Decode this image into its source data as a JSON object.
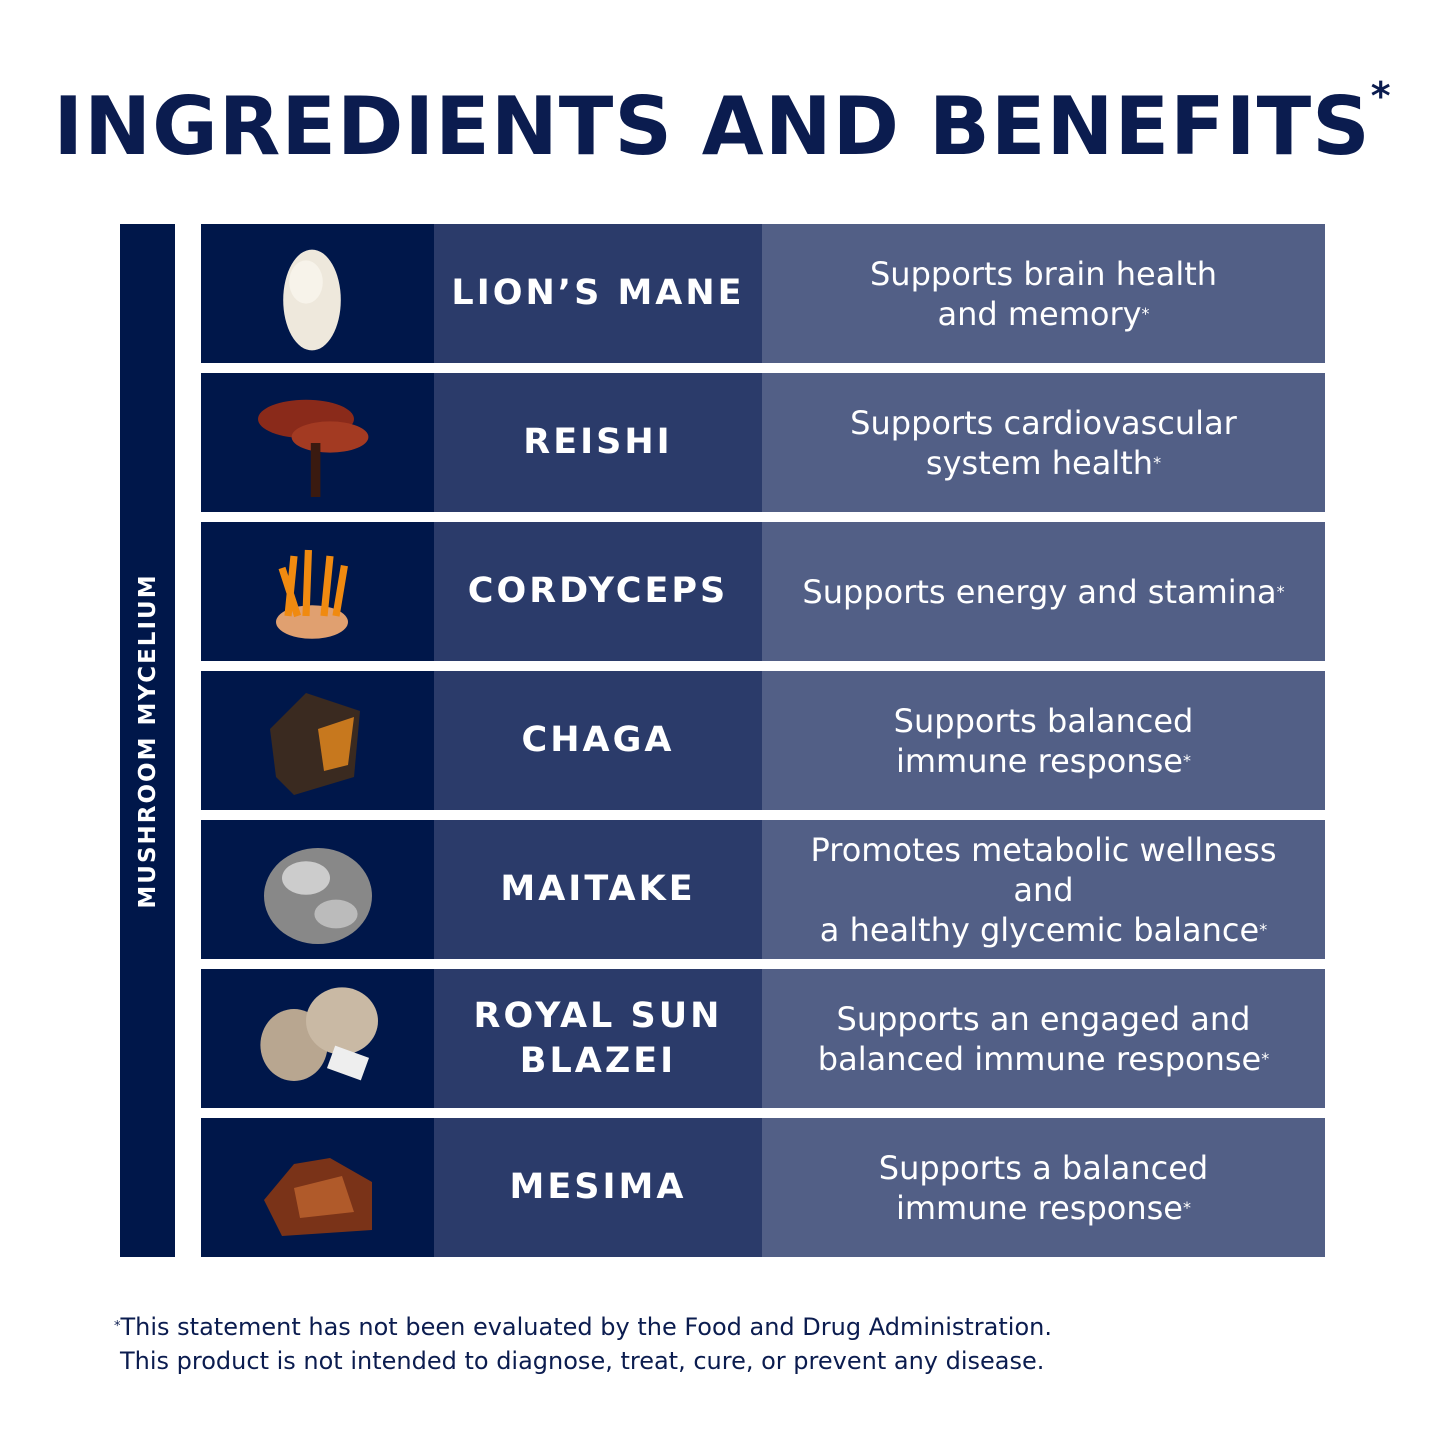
{
  "title": "INGREDIENTS AND BENEFITS",
  "title_mark": "*",
  "side_label": "MUSHROOM MYCELIUM",
  "colors": {
    "navy": "#00174a",
    "mid": "#2b3b6a",
    "light": "#525f86"
  },
  "rows": [
    {
      "name": "LION’S MANE",
      "benefit": "Supports brain health\nand memory",
      "mark": "*",
      "icon": "lions-mane-mushroom"
    },
    {
      "name": "REISHI",
      "benefit": "Supports cardiovascular\nsystem health",
      "mark": "*",
      "icon": "reishi-mushroom"
    },
    {
      "name": "CORDYCEPS",
      "benefit": "Supports energy and stamina",
      "mark": "*",
      "icon": "cordyceps-mushroom"
    },
    {
      "name": "CHAGA",
      "benefit": "Supports balanced\nimmune response",
      "mark": "*",
      "icon": "chaga-mushroom"
    },
    {
      "name": "MAITAKE",
      "benefit": "Promotes metabolic wellness and\na healthy glycemic balance",
      "mark": "*",
      "icon": "maitake-mushroom"
    },
    {
      "name": "ROYAL SUN\nBLAZEI",
      "benefit": "Supports an engaged and\nbalanced immune response",
      "mark": "*",
      "icon": "royal-sun-blazei-mushroom"
    },
    {
      "name": "MESIMA",
      "benefit": "Supports a balanced\nimmune response",
      "mark": "*",
      "icon": "mesima-mushroom"
    }
  ],
  "footnote": {
    "mark": "*",
    "line1": "This statement has not been evaluated by the Food and Drug Administration.",
    "line2": "This product is not intended to diagnose, treat, cure, or prevent any disease."
  }
}
